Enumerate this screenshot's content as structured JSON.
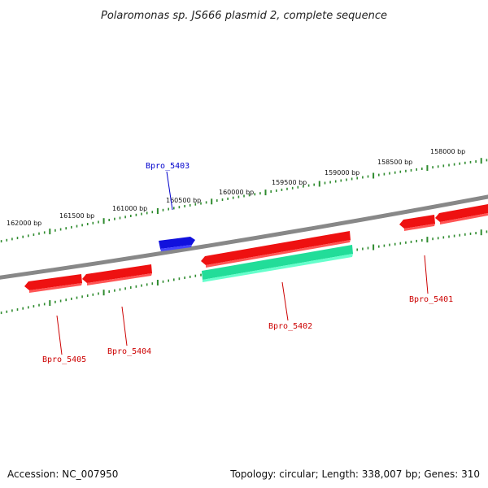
{
  "title": "Polaromonas sp. JS666 plasmid 2, complete sequence",
  "accession": "Accession: NC_007950",
  "summary": "Topology: circular; Length: 338,007 bp; Genes: 310",
  "scale_ticks": [
    {
      "bp": 162000,
      "label": "162000 bp"
    },
    {
      "bp": 161500,
      "label": "161500 bp"
    },
    {
      "bp": 161000,
      "label": "161000 bp"
    },
    {
      "bp": 160500,
      "label": "160500 bp"
    },
    {
      "bp": 160000,
      "label": "160000 bp"
    },
    {
      "bp": 159500,
      "label": "159500 bp"
    },
    {
      "bp": 159000,
      "label": "159000 bp"
    },
    {
      "bp": 158500,
      "label": "158500 bp"
    },
    {
      "bp": 158000,
      "label": "158000 bp"
    }
  ],
  "genes": [
    {
      "id": "Bpro_5401",
      "label": "Bpro_5401",
      "color": "#cc0000"
    },
    {
      "id": "Bpro_5402",
      "label": "Bpro_5402",
      "color": "#cc0000"
    },
    {
      "id": "Bpro_5403",
      "label": "Bpro_5403",
      "color": "#0000cc"
    },
    {
      "id": "Bpro_5404",
      "label": "Bpro_5404",
      "color": "#cc0000"
    },
    {
      "id": "Bpro_5405",
      "label": "Bpro_5405",
      "color": "#cc0000"
    }
  ],
  "colors": {
    "backbone": "#888888",
    "tick": "#2e8b2e",
    "gene_red": "#ee1111",
    "gene_blue": "#1111dd",
    "gene_teal": "#22dd99"
  }
}
